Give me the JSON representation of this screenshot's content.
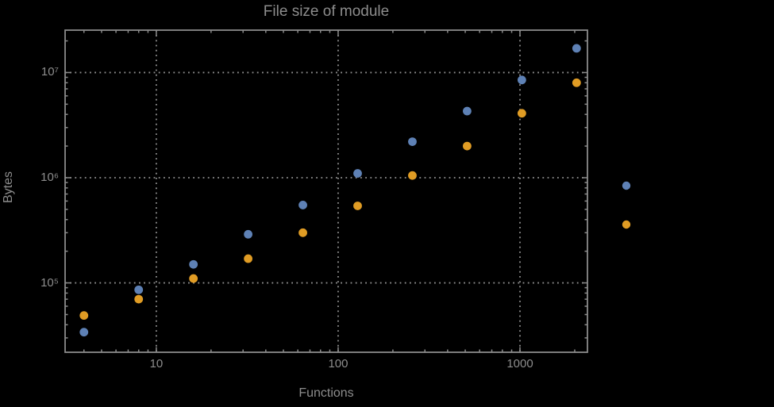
{
  "style": {
    "background": "#000000",
    "frame_color": "#8b8b8b",
    "grid_color": "#909090",
    "tick_color": "#8b8b8b",
    "text_color": "#8d8d8d",
    "point_radius": 5.4,
    "legend_marker_radius": 5.2
  },
  "chart_data": {
    "type": "scatter",
    "title": "File size of module",
    "xlabel": "Functions",
    "ylabel": "Bytes",
    "x_scale": "log",
    "y_scale": "log",
    "xlim": [
      3.15,
      2350
    ],
    "ylim": [
      21900,
      25300000
    ],
    "grid": "dotted lines at decade ticks, both axes",
    "x": [
      4,
      8,
      16,
      32,
      64,
      128,
      256,
      512,
      1024,
      2048
    ],
    "series": [
      {
        "name": "series-1-blue",
        "color": "#5e81b5",
        "values": [
          34000,
          86000,
          150000,
          290000,
          550000,
          1100000,
          2200000,
          4300000,
          8500000,
          17000000
        ]
      },
      {
        "name": "series-2-orange",
        "color": "#e09c24",
        "values": [
          49000,
          70000,
          110000,
          170000,
          300000,
          540000,
          1050000,
          2000000,
          4100000,
          8000000
        ]
      }
    ],
    "x_ticks": [
      {
        "value": 10,
        "label": "10"
      },
      {
        "value": 100,
        "label": "100"
      },
      {
        "value": 1000,
        "label": "1000"
      }
    ],
    "y_ticks": [
      {
        "value": 100000,
        "label": "10⁵"
      },
      {
        "value": 1000000,
        "label": "10⁶"
      },
      {
        "value": 10000000,
        "label": "10⁷"
      }
    ],
    "legend": {
      "position": "right-of-plot",
      "markers": [
        {
          "color": "#5e81b5",
          "label": ""
        },
        {
          "color": "#e09c24",
          "label": ""
        }
      ]
    }
  }
}
